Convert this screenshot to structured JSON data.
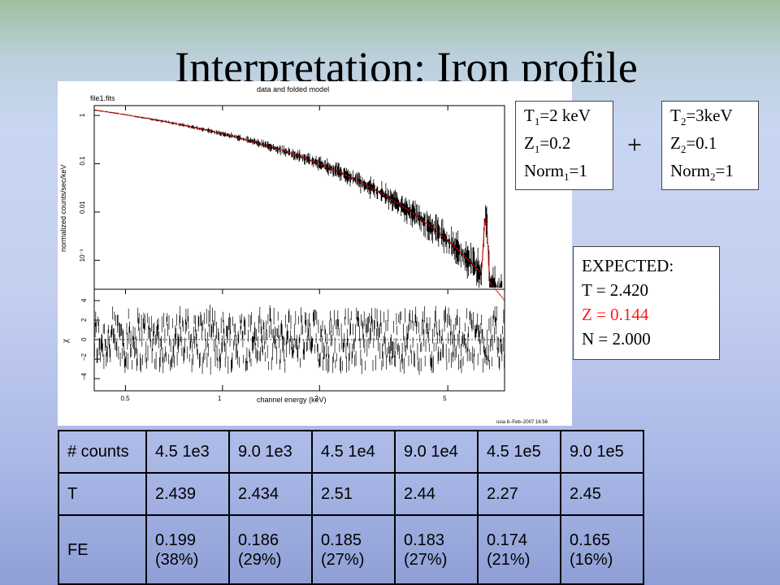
{
  "slide": {
    "title": "Interpretation: Iron profile"
  },
  "plot": {
    "header": "data and folded model",
    "filename": "file1.fits",
    "ylabel_top": "normalized counts/sec/keV",
    "ylabel_bottom": "χ",
    "xlabel": "channel energy (keV)",
    "footer": "usia  6–Feb–2007 16:56",
    "yticks_top": [
      "1",
      "0.1",
      "0.01",
      "10⁻³"
    ],
    "yticks_bottom": [
      "4",
      "2",
      "0",
      "−2",
      "−4"
    ],
    "xticks": [
      "0.5",
      "1",
      "2",
      "5"
    ],
    "colors": {
      "data": "#000000",
      "model": "#e00000"
    }
  },
  "component1": {
    "t_label": "T",
    "t_sub": "1",
    "t_val": "=2 keV",
    "z_label": "Z",
    "z_sub": "1",
    "z_val": "=0.2",
    "n_label": "Norm",
    "n_sub": "1",
    "n_val": "=1"
  },
  "plus": "+",
  "component2": {
    "t_label": "T",
    "t_sub": "2",
    "t_val": "=3keV",
    "z_label": "Z",
    "z_sub": "2",
    "z_val": "=0.1",
    "n_label": "Norm",
    "n_sub": "2",
    "n_val": "=1"
  },
  "expected": {
    "heading": "EXPECTED:",
    "t": "T = 2.420",
    "z": "Z = 0.144",
    "n": "N = 2.000",
    "z_color": "#ff1a1a"
  },
  "table": {
    "rows": [
      [
        "# counts",
        "4.5 1e3",
        "9.0 1e3",
        "4.5 1e4",
        "9.0 1e4",
        "4.5 1e5",
        "9.0 1e5"
      ],
      [
        "T",
        "2.439",
        "2.434",
        "2.51",
        "2.44",
        "2.27",
        "2.45"
      ],
      [
        "FE",
        "0.199 (38%)",
        "0.186 (29%)",
        "0.185 (27%)",
        "0.183 (27%)",
        "0.174 (21%)",
        "0.165 (16%)"
      ]
    ]
  }
}
